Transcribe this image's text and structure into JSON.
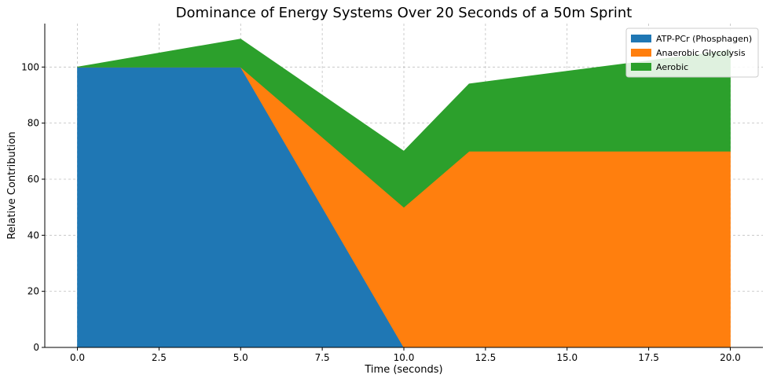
{
  "chart_data": {
    "type": "area",
    "stacked": true,
    "title": "Dominance of Energy Systems Over 20 Seconds of a 50m Sprint",
    "xlabel": "Time (seconds)",
    "ylabel": "Relative Contribution",
    "x": [
      0,
      5,
      10,
      12,
      20
    ],
    "xlim": [
      -1,
      21
    ],
    "ylim": [
      0,
      115.5
    ],
    "xticks": [
      0.0,
      2.5,
      5.0,
      7.5,
      10.0,
      12.5,
      15.0,
      17.5,
      20.0
    ],
    "xtick_labels": [
      "0.0",
      "2.5",
      "5.0",
      "7.5",
      "10.0",
      "12.5",
      "15.0",
      "17.5",
      "20.0"
    ],
    "yticks": [
      0,
      20,
      40,
      60,
      80,
      100
    ],
    "ytick_labels": [
      "0",
      "20",
      "40",
      "60",
      "80",
      "100"
    ],
    "grid": true,
    "legend_position": "top-right",
    "series": [
      {
        "name": "ATP-PCr (Phosphagen)",
        "values": [
          100,
          100,
          0,
          0,
          0
        ],
        "color": "#1f77b4"
      },
      {
        "name": "Anaerobic Glycolysis",
        "values": [
          0,
          0,
          50,
          70,
          70
        ],
        "color": "#ff7f0e"
      },
      {
        "name": "Aerobic",
        "values": [
          0,
          10,
          20,
          24,
          36
        ],
        "color": "#2ca02c"
      }
    ]
  }
}
